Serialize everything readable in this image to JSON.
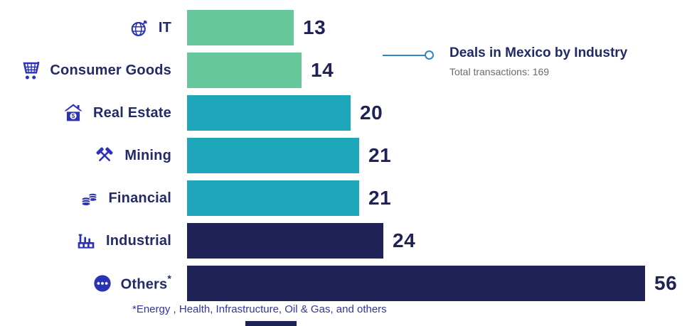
{
  "header": {
    "title": "Deals in Mexico by Industry",
    "subtitle": "Total transactions: 169"
  },
  "footnote": "*Energy , Health, Infrastructure, Oil & Gas, and others",
  "colors": {
    "green": "#66C79B",
    "teal": "#1EA7BB",
    "navy": "#1E2257",
    "icon_blue": "#2B32B4",
    "callout_blue": "#2E86C4",
    "label_navy": "#222A68",
    "subtitle_gray": "#6A6A6A",
    "footnote_blue": "#3333A0"
  },
  "chart_data": {
    "type": "bar",
    "orientation": "horizontal",
    "title": "Deals in Mexico by Industry",
    "subtitle": "Total transactions: 169",
    "categories": [
      "IT",
      "Consumer Goods",
      "Real Estate",
      "Mining",
      "Financial",
      "Industrial",
      "Others"
    ],
    "suffixes": [
      "",
      "",
      "",
      "",
      "",
      "",
      "*"
    ],
    "values": [
      13,
      14,
      20,
      21,
      21,
      24,
      56
    ],
    "series_colors": [
      "#66C79B",
      "#66C79B",
      "#1EA7BB",
      "#1EA7BB",
      "#1EA7BB",
      "#1E2257",
      "#1E2257"
    ],
    "icons": [
      "it-globe-icon",
      "shopping-cart-icon",
      "house-dollar-icon",
      "mining-hammers-icon",
      "coins-icon",
      "factory-icon",
      "ellipsis-circle-icon"
    ],
    "value_labels": true,
    "xlim": [
      0,
      60
    ],
    "total_transactions": 169,
    "legend_position": "none",
    "grid": false
  }
}
